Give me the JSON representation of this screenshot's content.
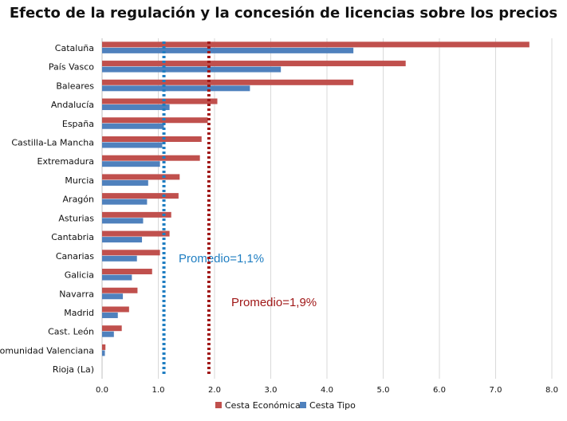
{
  "chart_data": {
    "type": "bar",
    "orientation": "horizontal",
    "title": "Efecto de la regulación y la concesión de licencias sobre los precios",
    "categories": [
      "Cataluña",
      "País Vasco",
      "Baleares",
      "Andalucía",
      "España",
      "Castilla-La Mancha",
      "Extremadura",
      "Murcia",
      "Aragón",
      "Asturias",
      "Cantabria",
      "Canarias",
      "Galicia",
      "Navarra",
      "Madrid",
      "Cast. León",
      "Comunidad Valenciana",
      "Rioja (La)"
    ],
    "series": [
      {
        "name": "Cesta Económica",
        "color": "#c0504d",
        "values": [
          7.6,
          5.4,
          4.47,
          2.05,
          1.88,
          1.77,
          1.74,
          1.38,
          1.36,
          1.23,
          1.2,
          1.03,
          0.89,
          0.63,
          0.48,
          0.35,
          0.06,
          0.0
        ]
      },
      {
        "name": "Cesta Tipo",
        "color": "#4f81bd",
        "values": [
          4.47,
          3.18,
          2.63,
          1.2,
          1.1,
          1.07,
          1.03,
          0.82,
          0.8,
          0.73,
          0.71,
          0.62,
          0.53,
          0.37,
          0.28,
          0.21,
          0.05,
          0.0
        ]
      }
    ],
    "xlim": [
      0,
      8
    ],
    "xticks": [
      "0.0",
      "1.0",
      "2.0",
      "3.0",
      "4.0",
      "5.0",
      "6.0",
      "7.0",
      "8.0"
    ],
    "grid": true,
    "legend_position": "bottom",
    "reference_lines": [
      {
        "value": 1.1,
        "label": "Promedio=1,1%",
        "color": "#1f7ec2"
      },
      {
        "value": 1.9,
        "label": "Promedio=1,9%",
        "color": "#a01818"
      }
    ]
  }
}
